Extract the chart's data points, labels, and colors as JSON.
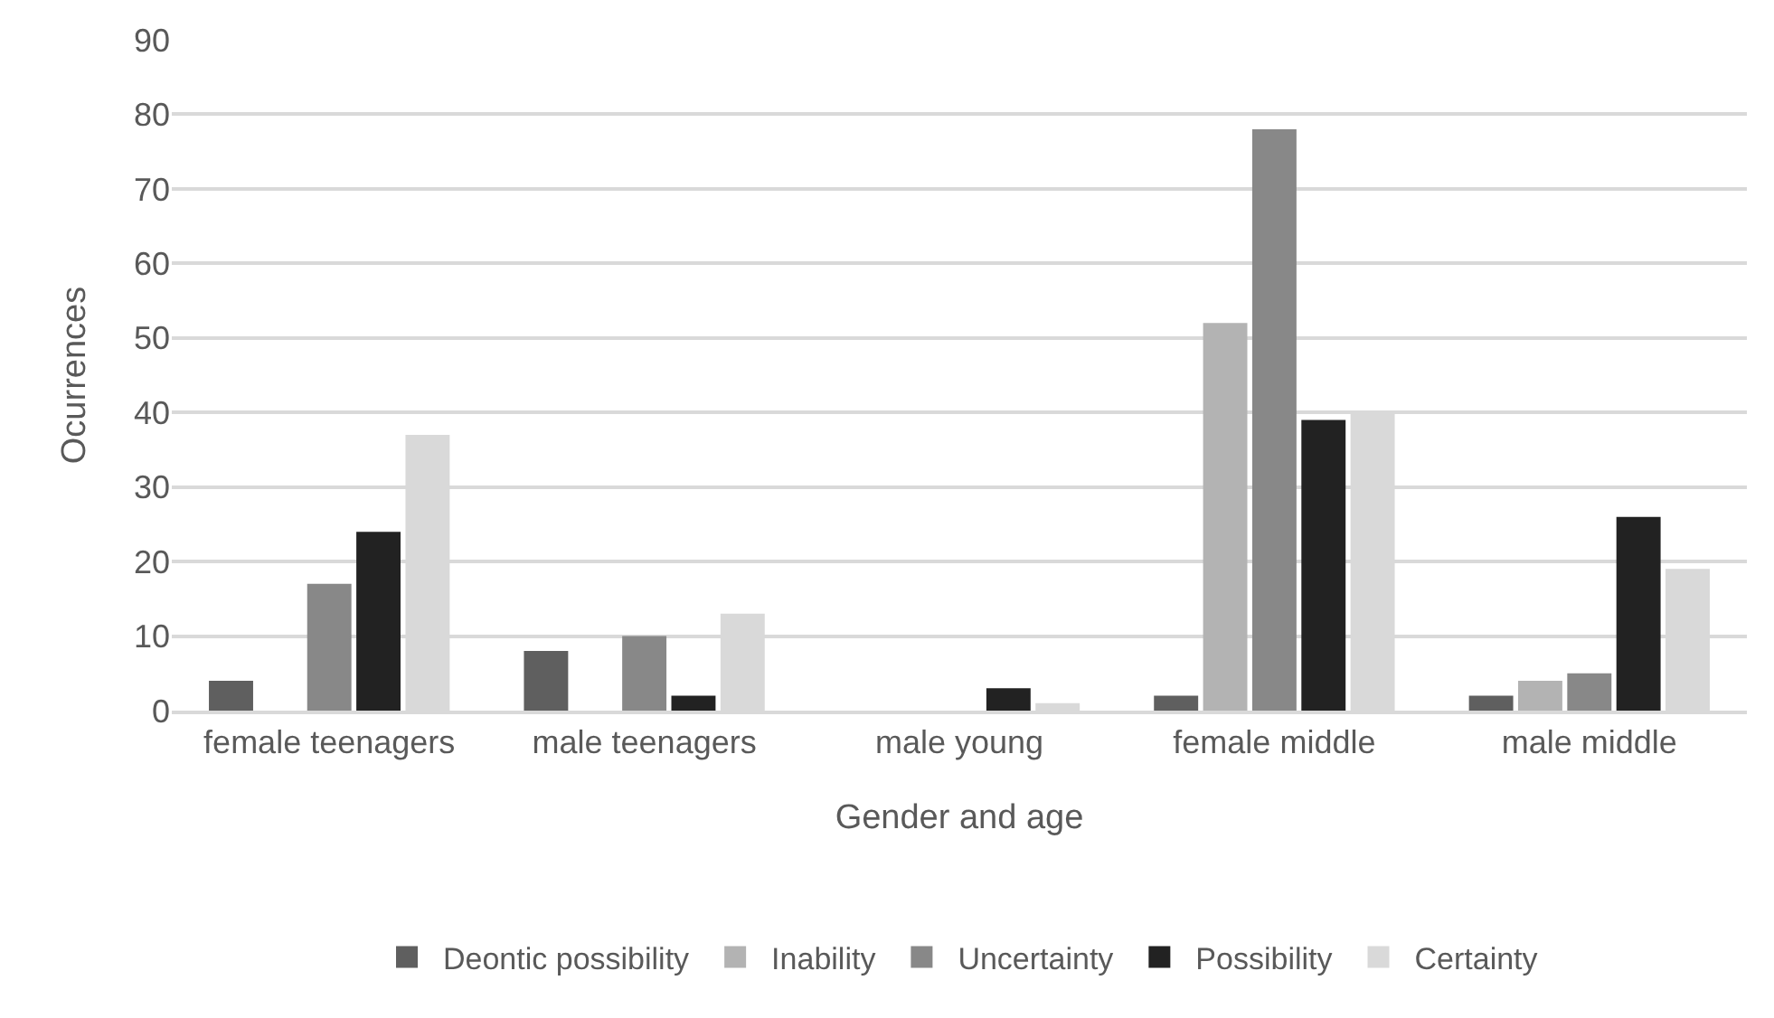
{
  "chart_data": {
    "type": "bar",
    "xlabel": "Gender and age",
    "ylabel": "Ocurrences",
    "categories": [
      "female teenagers",
      "male teenagers",
      "male young",
      "female middle",
      "male middle"
    ],
    "series": [
      {
        "name": "Deontic possibility",
        "color": "#5f5f5f",
        "values": [
          4,
          8,
          0,
          2,
          2
        ]
      },
      {
        "name": "Inability",
        "color": "#b3b3b3",
        "values": [
          0,
          0,
          0,
          52,
          4
        ]
      },
      {
        "name": "Uncertainty",
        "color": "#888888",
        "values": [
          17,
          10,
          0,
          78,
          5
        ]
      },
      {
        "name": "Possibility",
        "color": "#222222",
        "values": [
          24,
          2,
          3,
          39,
          26
        ]
      },
      {
        "name": "Certainty",
        "color": "#d9d9d9",
        "values": [
          37,
          13,
          1,
          40,
          19
        ]
      }
    ],
    "ylim": [
      0,
      90
    ],
    "yticks": [
      0,
      10,
      20,
      30,
      40,
      50,
      60,
      70,
      80,
      90
    ],
    "grid": "y",
    "legend": "bottom"
  }
}
